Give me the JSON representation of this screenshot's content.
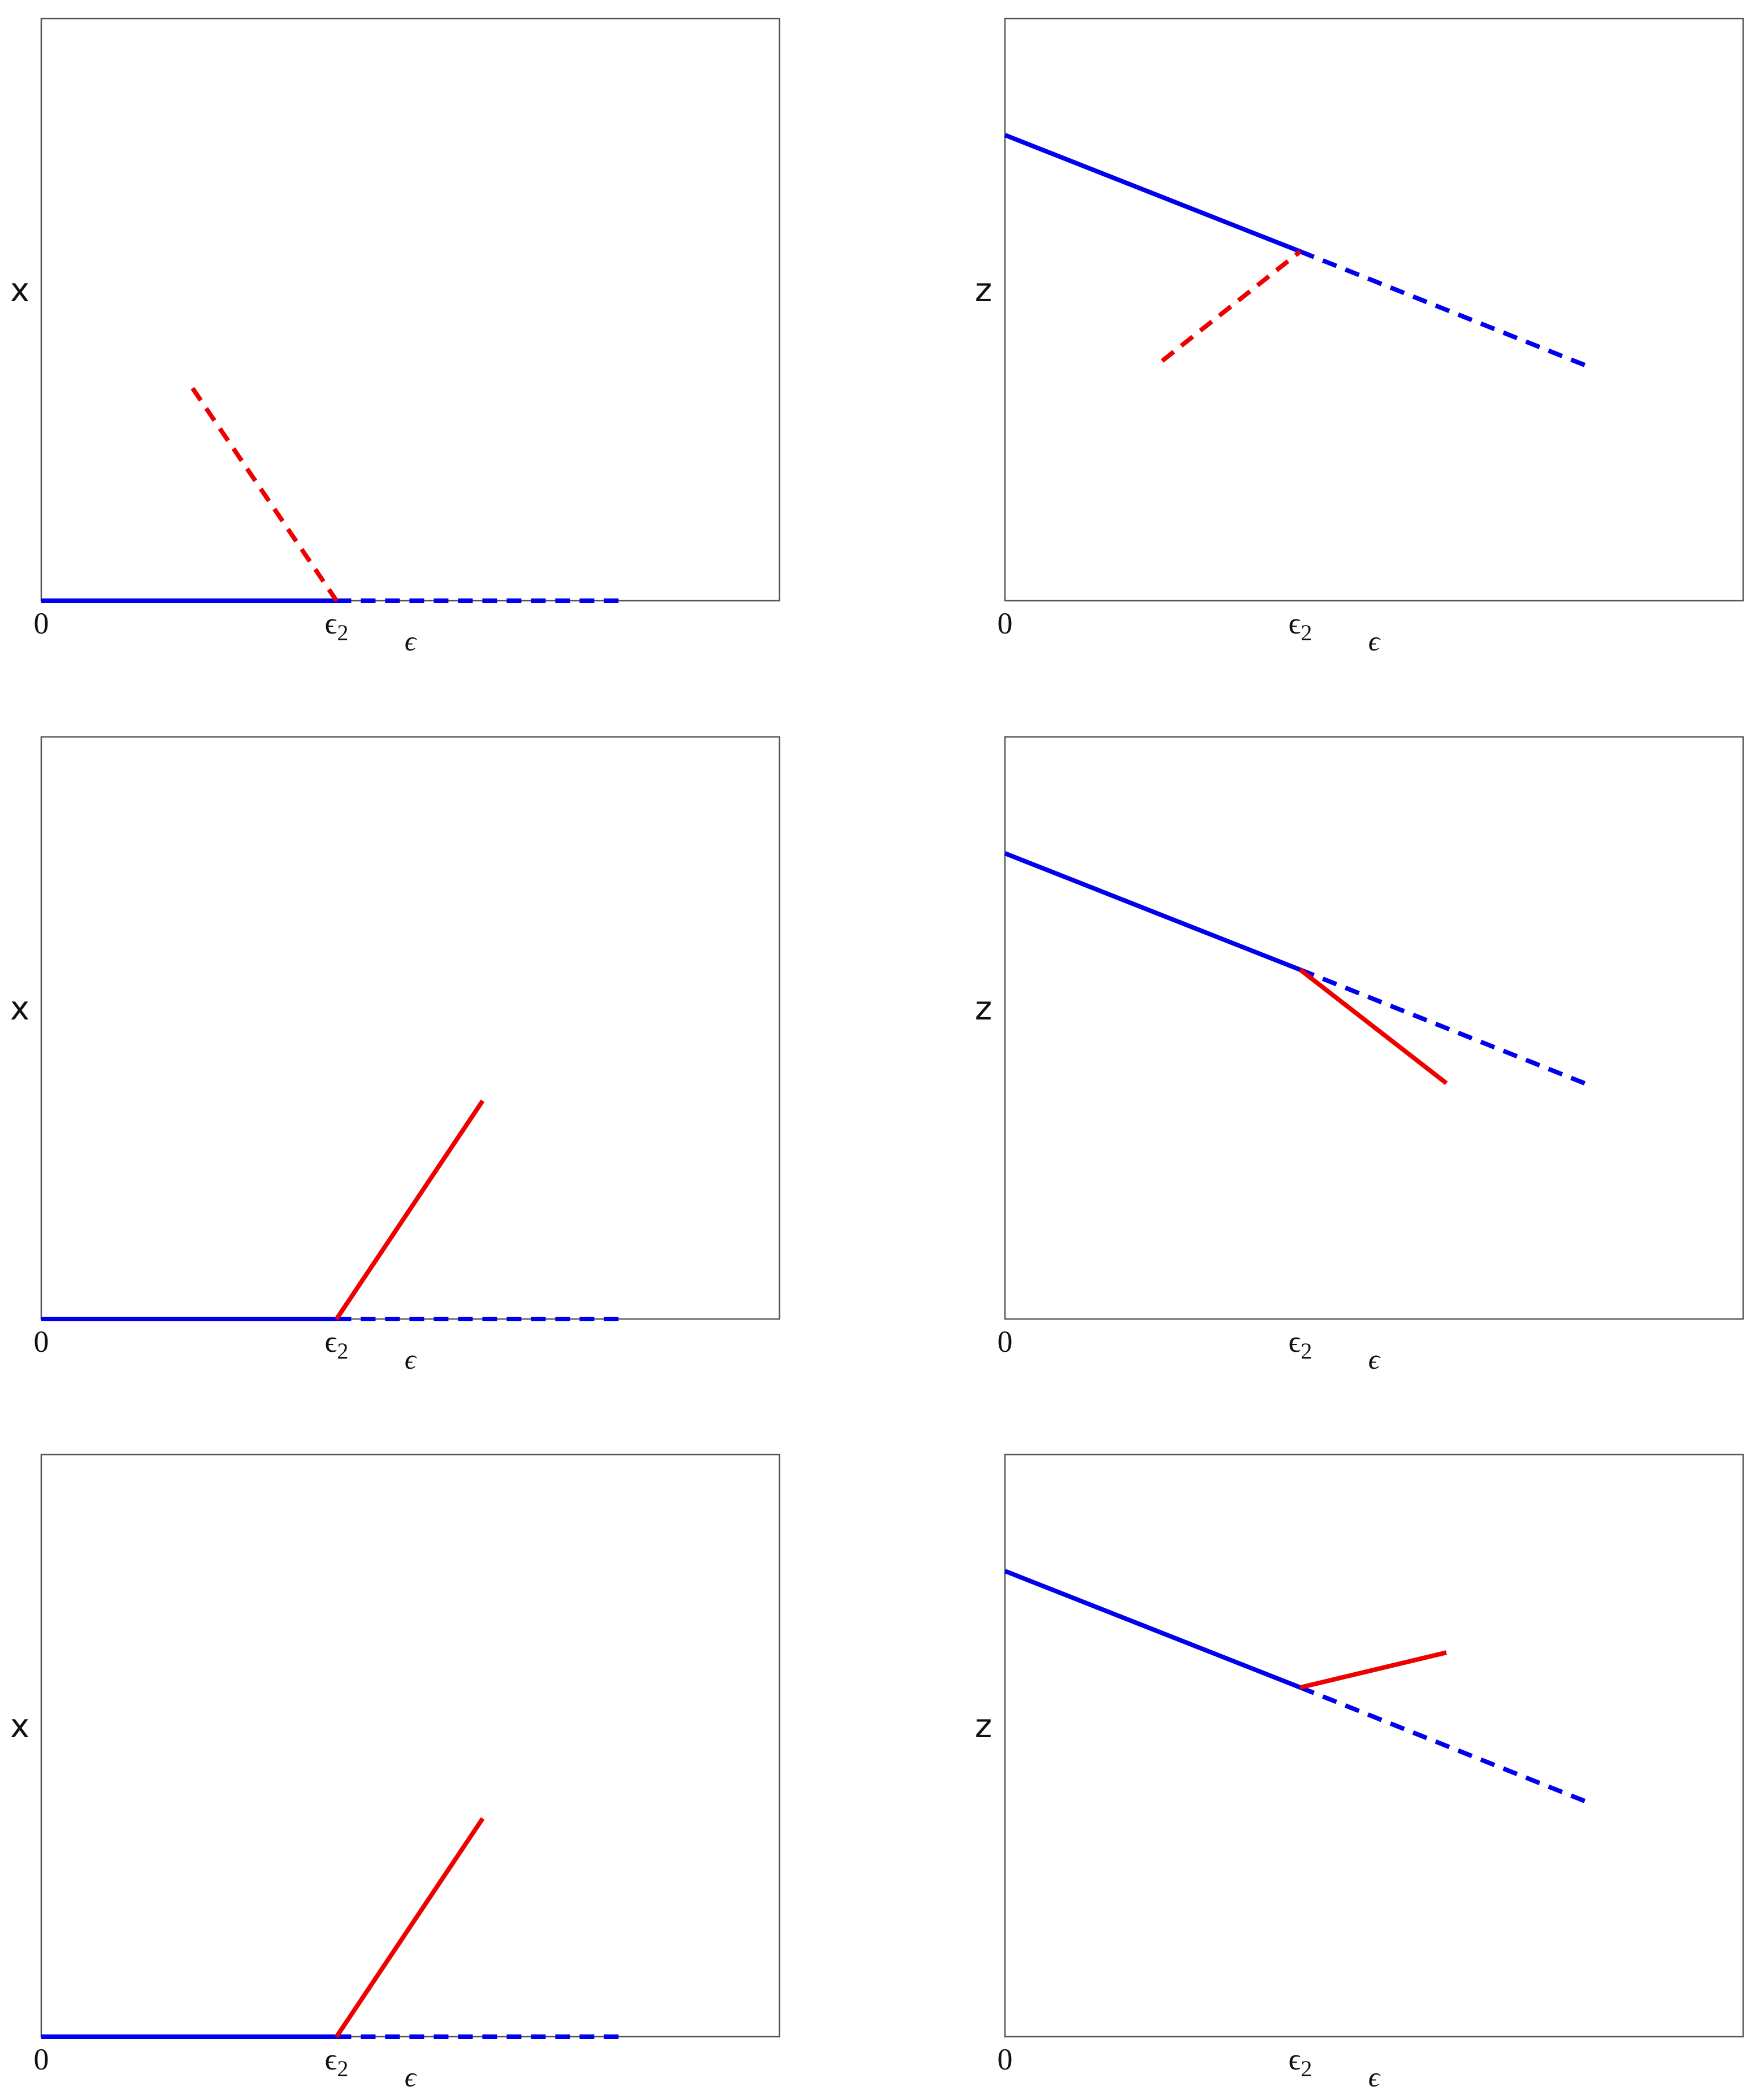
{
  "chart_data": [
    {
      "type": "line",
      "ylabel": "x",
      "xlabel": "ϵ",
      "xlim": [
        0,
        1
      ],
      "ylim": [
        0,
        1
      ],
      "x_ticks": [
        {
          "value": 0,
          "label": "0"
        },
        {
          "value": 0.4,
          "label": "ϵ₂",
          "base": "ϵ",
          "sub": "2"
        }
      ],
      "series": [
        {
          "color": "#0000ee",
          "style": "solid",
          "points": [
            [
              0,
              0
            ],
            [
              0.4,
              0
            ]
          ]
        },
        {
          "color": "#0000ee",
          "style": "dashed",
          "points": [
            [
              0.4,
              0
            ],
            [
              0.79,
              0
            ]
          ]
        },
        {
          "color": "#ee0000",
          "style": "dashed",
          "points": [
            [
              0.205,
              0.365
            ],
            [
              0.4,
              0
            ]
          ]
        }
      ]
    },
    {
      "type": "line",
      "ylabel": "z",
      "xlabel": "ϵ",
      "xlim": [
        0,
        1
      ],
      "ylim": [
        0,
        1
      ],
      "x_ticks": [
        {
          "value": 0,
          "label": "0"
        },
        {
          "value": 0.4,
          "label": "ϵ₂",
          "base": "ϵ",
          "sub": "2"
        }
      ],
      "series": [
        {
          "color": "#0000ee",
          "style": "solid",
          "points": [
            [
              0,
              0.8
            ],
            [
              0.4,
              0.6
            ]
          ]
        },
        {
          "color": "#0000ee",
          "style": "dashed",
          "points": [
            [
              0.4,
              0.6
            ],
            [
              0.795,
              0.4
            ]
          ]
        },
        {
          "color": "#ee0000",
          "style": "dashed",
          "points": [
            [
              0.213,
              0.412
            ],
            [
              0.4,
              0.6
            ]
          ]
        }
      ]
    },
    {
      "type": "line",
      "ylabel": "x",
      "xlabel": "ϵ",
      "xlim": [
        0,
        1
      ],
      "ylim": [
        0,
        1
      ],
      "x_ticks": [
        {
          "value": 0,
          "label": "0"
        },
        {
          "value": 0.4,
          "label": "ϵ₂",
          "base": "ϵ",
          "sub": "2"
        }
      ],
      "series": [
        {
          "color": "#0000ee",
          "style": "solid",
          "points": [
            [
              0,
              0
            ],
            [
              0.4,
              0
            ]
          ]
        },
        {
          "color": "#0000ee",
          "style": "dashed",
          "points": [
            [
              0.4,
              0
            ],
            [
              0.79,
              0
            ]
          ]
        },
        {
          "color": "#ee0000",
          "style": "solid",
          "points": [
            [
              0.4,
              0
            ],
            [
              0.598,
              0.375
            ]
          ]
        }
      ]
    },
    {
      "type": "line",
      "ylabel": "z",
      "xlabel": "ϵ",
      "xlim": [
        0,
        1
      ],
      "ylim": [
        0,
        1
      ],
      "x_ticks": [
        {
          "value": 0,
          "label": "0"
        },
        {
          "value": 0.4,
          "label": "ϵ₂",
          "base": "ϵ",
          "sub": "2"
        }
      ],
      "series": [
        {
          "color": "#0000ee",
          "style": "solid",
          "points": [
            [
              0,
              0.8
            ],
            [
              0.4,
              0.6
            ]
          ]
        },
        {
          "color": "#0000ee",
          "style": "dashed",
          "points": [
            [
              0.4,
              0.6
            ],
            [
              0.795,
              0.4
            ]
          ]
        },
        {
          "color": "#ee0000",
          "style": "solid",
          "points": [
            [
              0.4,
              0.6
            ],
            [
              0.598,
              0.405
            ]
          ]
        }
      ]
    },
    {
      "type": "line",
      "ylabel": "x",
      "xlabel": "ϵ",
      "xlim": [
        0,
        1
      ],
      "ylim": [
        0,
        1
      ],
      "x_ticks": [
        {
          "value": 0,
          "label": "0"
        },
        {
          "value": 0.4,
          "label": "ϵ₂",
          "base": "ϵ",
          "sub": "2"
        }
      ],
      "series": [
        {
          "color": "#0000ee",
          "style": "solid",
          "points": [
            [
              0,
              0
            ],
            [
              0.4,
              0
            ]
          ]
        },
        {
          "color": "#0000ee",
          "style": "dashed",
          "points": [
            [
              0.4,
              0
            ],
            [
              0.79,
              0
            ]
          ]
        },
        {
          "color": "#ee0000",
          "style": "solid",
          "points": [
            [
              0.4,
              0
            ],
            [
              0.598,
              0.375
            ]
          ]
        }
      ]
    },
    {
      "type": "line",
      "ylabel": "z",
      "xlabel": "ϵ",
      "xlim": [
        0,
        1
      ],
      "ylim": [
        0,
        1
      ],
      "x_ticks": [
        {
          "value": 0,
          "label": "0"
        },
        {
          "value": 0.4,
          "label": "ϵ₂",
          "base": "ϵ",
          "sub": "2"
        }
      ],
      "series": [
        {
          "color": "#0000ee",
          "style": "solid",
          "points": [
            [
              0,
              0.8
            ],
            [
              0.4,
              0.6
            ]
          ]
        },
        {
          "color": "#0000ee",
          "style": "dashed",
          "points": [
            [
              0.4,
              0.6
            ],
            [
              0.795,
              0.4
            ]
          ]
        },
        {
          "color": "#ee0000",
          "style": "solid",
          "points": [
            [
              0.4,
              0.6
            ],
            [
              0.598,
              0.66
            ]
          ]
        }
      ]
    }
  ]
}
